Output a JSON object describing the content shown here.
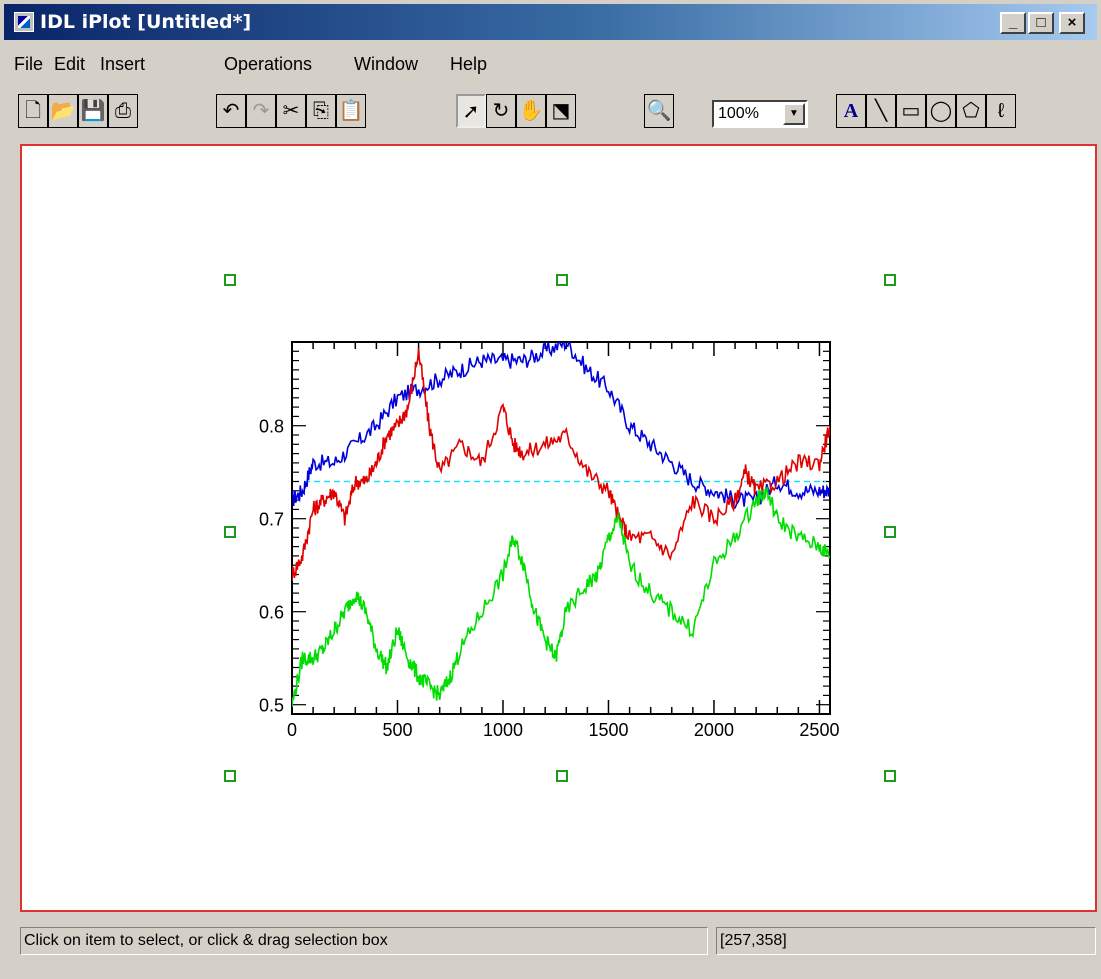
{
  "window": {
    "title": "IDL iPlot [Untitled*]"
  },
  "menu": [
    "File",
    "Edit",
    "Insert",
    "Operations",
    "Window",
    "Help"
  ],
  "toolbar": {
    "zoom_value": "100%"
  },
  "status": {
    "message": "Click on item to select, or click & drag selection box",
    "coords": "[257,358]"
  },
  "chart_data": {
    "type": "line",
    "xlim": [
      0,
      2550
    ],
    "ylim": [
      0.49,
      0.89
    ],
    "x_ticks": [
      0,
      500,
      1000,
      1500,
      2000,
      2500
    ],
    "y_ticks": [
      0.5,
      0.6,
      0.7,
      0.8
    ],
    "y_tick_labels": [
      "0.5",
      "0.6",
      "0.7",
      "0.8"
    ],
    "reference_line": {
      "y": 0.74,
      "color": "#19e6f2"
    },
    "series": [
      {
        "color": "#0000dd",
        "x": [
          0,
          50,
          100,
          200,
          300,
          400,
          500,
          600,
          700,
          800,
          900,
          1000,
          1100,
          1200,
          1300,
          1400,
          1500,
          1600,
          1700,
          1800,
          1900,
          2000,
          2100,
          2200,
          2300,
          2400,
          2500,
          2550
        ],
        "y": [
          0.72,
          0.73,
          0.76,
          0.76,
          0.78,
          0.8,
          0.83,
          0.84,
          0.85,
          0.86,
          0.87,
          0.87,
          0.87,
          0.88,
          0.89,
          0.86,
          0.84,
          0.8,
          0.78,
          0.76,
          0.74,
          0.73,
          0.72,
          0.72,
          0.74,
          0.73,
          0.73,
          0.73
        ]
      },
      {
        "color": "#e00000",
        "x": [
          0,
          50,
          100,
          150,
          200,
          250,
          300,
          350,
          400,
          450,
          500,
          550,
          600,
          650,
          700,
          800,
          900,
          1000,
          1050,
          1100,
          1200,
          1300,
          1400,
          1500,
          1550,
          1600,
          1700,
          1800,
          1900,
          2000,
          2100,
          2150,
          2200,
          2300,
          2400,
          2500,
          2550
        ],
        "y": [
          0.64,
          0.66,
          0.71,
          0.72,
          0.73,
          0.7,
          0.74,
          0.74,
          0.76,
          0.79,
          0.8,
          0.82,
          0.88,
          0.8,
          0.75,
          0.78,
          0.76,
          0.82,
          0.78,
          0.77,
          0.78,
          0.79,
          0.75,
          0.73,
          0.7,
          0.68,
          0.68,
          0.66,
          0.72,
          0.7,
          0.72,
          0.75,
          0.73,
          0.74,
          0.76,
          0.76,
          0.8
        ]
      },
      {
        "color": "#00dd00",
        "x": [
          0,
          50,
          100,
          150,
          200,
          250,
          300,
          350,
          400,
          450,
          500,
          550,
          600,
          650,
          700,
          750,
          800,
          900,
          1000,
          1050,
          1100,
          1150,
          1200,
          1250,
          1300,
          1400,
          1450,
          1500,
          1550,
          1600,
          1700,
          1800,
          1900,
          2000,
          2100,
          2200,
          2250,
          2300,
          2400,
          2500,
          2550
        ],
        "y": [
          0.5,
          0.55,
          0.55,
          0.56,
          0.58,
          0.6,
          0.62,
          0.6,
          0.56,
          0.54,
          0.58,
          0.55,
          0.53,
          0.52,
          0.51,
          0.53,
          0.56,
          0.6,
          0.64,
          0.68,
          0.65,
          0.6,
          0.57,
          0.55,
          0.6,
          0.63,
          0.64,
          0.68,
          0.7,
          0.65,
          0.62,
          0.6,
          0.58,
          0.65,
          0.68,
          0.72,
          0.73,
          0.7,
          0.68,
          0.67,
          0.66
        ]
      }
    ]
  }
}
